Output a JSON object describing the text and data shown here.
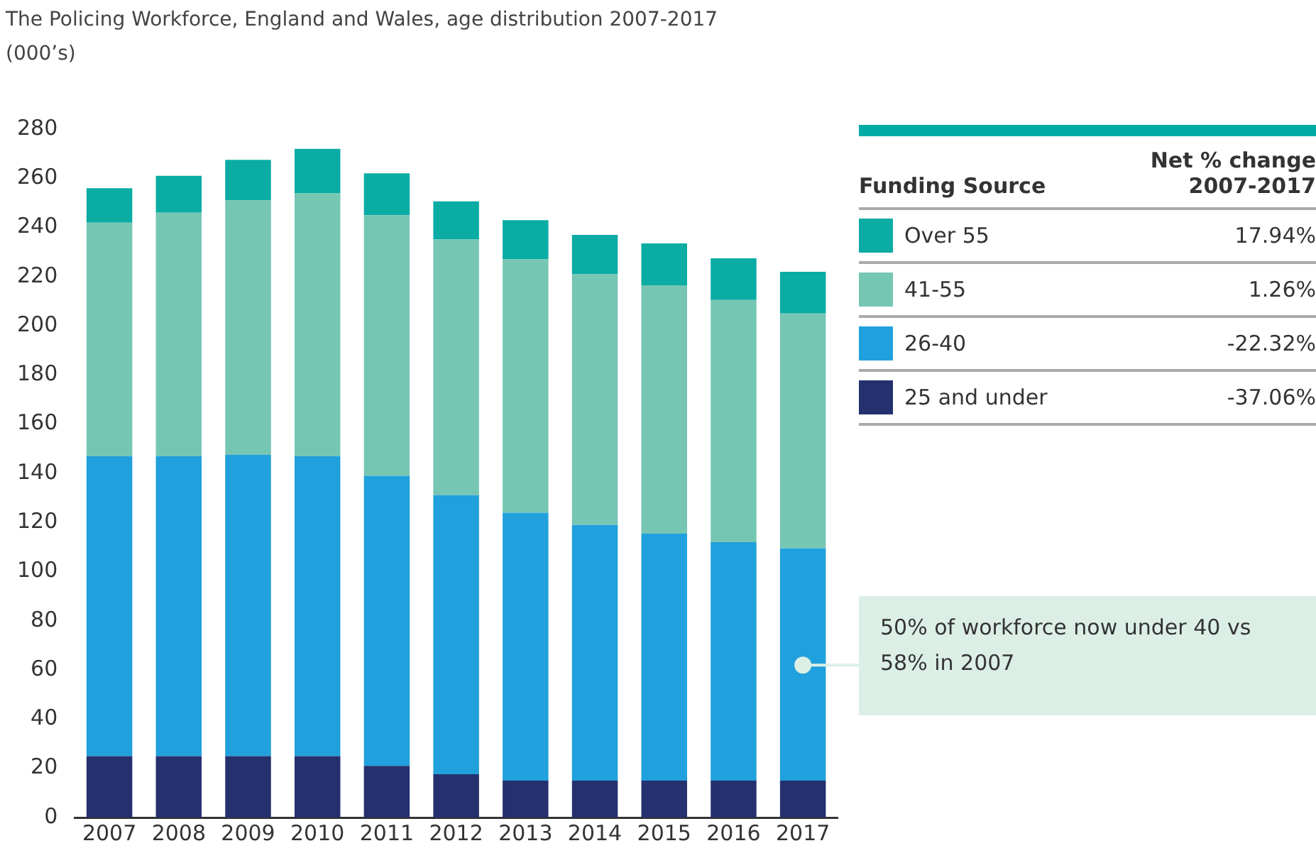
{
  "chart_data": {
    "type": "bar",
    "stacked": true,
    "title": "The Policing Workforce, England and Wales, age distribution 2007-2017",
    "ylabel": "(000’s)",
    "legend_title": "Funding Source",
    "legend": "right",
    "categories": [
      "2007",
      "2008",
      "2009",
      "2010",
      "2011",
      "2012",
      "2013",
      "2014",
      "2015",
      "2016",
      "2017"
    ],
    "ylim": [
      0,
      280
    ],
    "yticks": [
      0,
      20,
      40,
      60,
      80,
      100,
      120,
      140,
      160,
      180,
      200,
      220,
      240,
      260,
      280
    ],
    "grid": false,
    "series": [
      {
        "name": "25 and under",
        "color": "#25306f",
        "values": [
          25,
          25,
          25,
          25,
          21,
          17.6,
          15,
          15,
          15,
          15,
          15
        ]
      },
      {
        "name": "26-40",
        "color": "#20a0dc",
        "values": [
          122,
          122,
          122.5,
          122,
          118,
          113.5,
          109,
          104,
          100.5,
          97,
          94.5
        ]
      },
      {
        "name": "41-55",
        "color": "#76c6b4",
        "values": [
          95,
          99,
          103.5,
          107,
          106,
          104,
          103,
          102,
          101,
          98.5,
          95.5
        ]
      },
      {
        "name": "Over 55",
        "color": "#0aaca4",
        "values": [
          14,
          15,
          16.5,
          18,
          17,
          15.5,
          16,
          16,
          17,
          17,
          17
        ]
      }
    ],
    "annotations": [
      "Net % change 2007-2017",
      "-37.06%",
      "-22.32%",
      "1.26%",
      "17.94%",
      {
        "text": "50% of workforce now under 40 vs 58% in 2007",
        "x": "2017",
        "y": 62
      }
    ]
  }
}
